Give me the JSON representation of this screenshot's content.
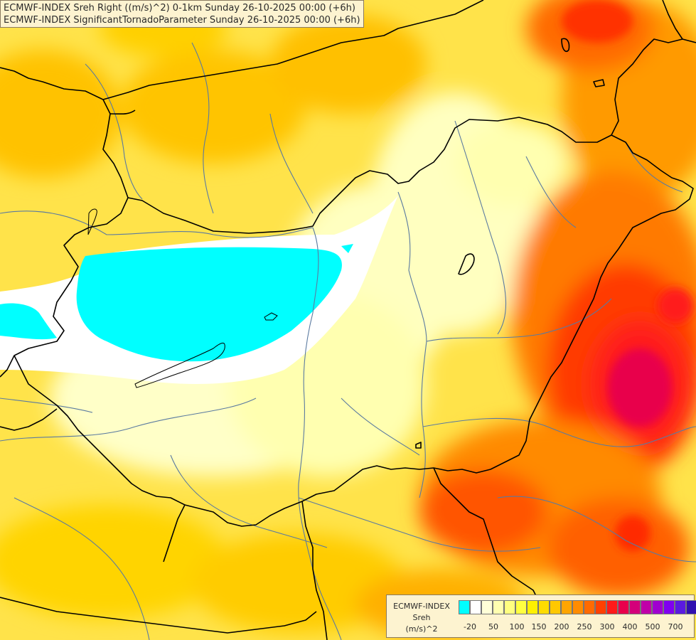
{
  "title": {
    "line1": "ECMWF-INDEX Sreh Right ((m/s)^2) 0-1km Sunday 26-10-2025 00:00 (+6h)",
    "line2": "ECMWF-INDEX SignificantTornadoParameter Sunday 26-10-2025 00:00 (+6h)"
  },
  "legend": {
    "line1": "ECMWF-INDEX",
    "line2": "Sreh",
    "line3": "(m/s)^2",
    "colors": [
      "#00ffff",
      "#ffffff",
      "#ffffd8",
      "#ffffb0",
      "#ffff80",
      "#ffff40",
      "#fff000",
      "#ffdc00",
      "#ffc800",
      "#ffa500",
      "#ff8c00",
      "#ff6a00",
      "#ff4000",
      "#ff1a1a",
      "#e8004c",
      "#d4007a",
      "#c000a8",
      "#a000d0",
      "#8000f0",
      "#5a1ae0",
      "#3010b0",
      "#000080"
    ],
    "ticks": [
      "-20",
      "50",
      "100",
      "150",
      "200",
      "250",
      "300",
      "400",
      "500",
      "700"
    ]
  }
}
